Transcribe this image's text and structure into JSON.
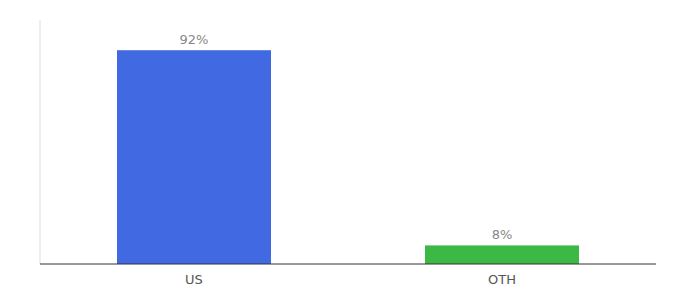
{
  "chart_data": {
    "type": "bar",
    "categories": [
      "US",
      "OTH"
    ],
    "values": [
      92,
      8
    ],
    "colors": [
      "#4169e1",
      "#3cb844"
    ],
    "data_labels": true,
    "value_labels": [
      "92%",
      "8%"
    ],
    "ylim": [
      0,
      105
    ],
    "tick_labels": "x"
  }
}
